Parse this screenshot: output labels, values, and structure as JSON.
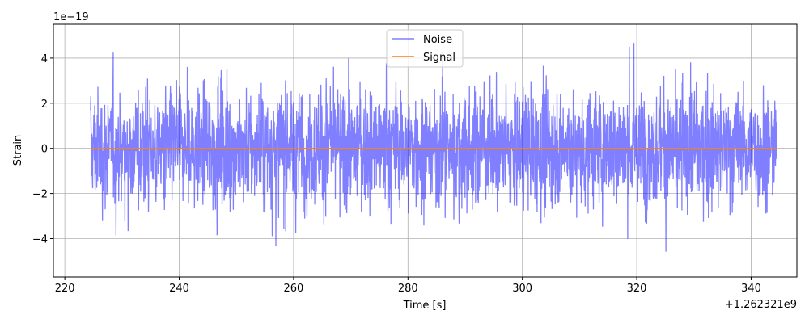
{
  "chart_data": {
    "type": "line",
    "title": "",
    "xlabel": "Time [s]",
    "ylabel": "Strain",
    "x_offset_label": "+1.262321e9",
    "y_scale_label": "1e−19",
    "xlim": [
      218,
      348
    ],
    "ylim": [
      -5.7,
      5.5
    ],
    "xticks": [
      220,
      240,
      260,
      280,
      300,
      320,
      340
    ],
    "xtick_labels": [
      "220",
      "240",
      "260",
      "280",
      "300",
      "320",
      "340"
    ],
    "yticks": [
      -4,
      -2,
      0,
      2,
      4
    ],
    "ytick_labels": [
      "−4",
      "−2",
      "0",
      "2",
      "4"
    ],
    "grid": true,
    "legend_position": "top-center",
    "series": [
      {
        "name": "Noise",
        "color": "#0000ff",
        "opacity": 0.5,
        "x_range": [
          224.5,
          344.5
        ],
        "y_min": -5.2,
        "y_max": 5.0,
        "typical_amplitude": 2.3
      },
      {
        "name": "Signal",
        "color": "#ff7f0e",
        "x_range": [
          224.5,
          344.5
        ],
        "values_constant": 0
      }
    ],
    "legend": [
      {
        "label": "Noise",
        "color": "#0000ff",
        "opacity": 0.5
      },
      {
        "label": "Signal",
        "color": "#ff7f0e",
        "opacity": 1
      }
    ]
  }
}
